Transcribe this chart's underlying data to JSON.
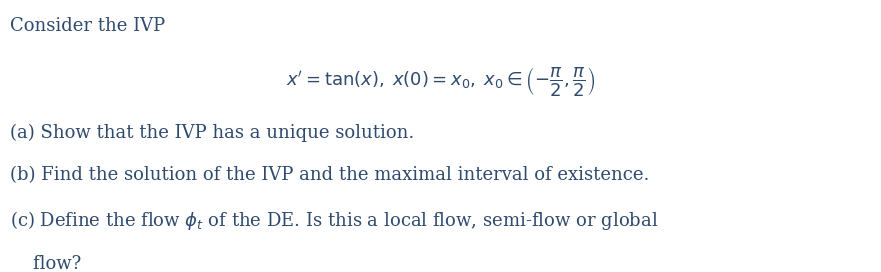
{
  "background_color": "#ffffff",
  "text_color": "#2e4a6e",
  "title_text": "Consider the IVP",
  "equation": "$x' = \\tan(x), \\; x(0) = x_0, \\; x_0 \\in \\left(-\\dfrac{\\pi}{2}, \\dfrac{\\pi}{2}\\right)$",
  "part_a": "(a) Show that the IVP has a unique solution.",
  "part_b": "(b) Find the solution of the IVP and the maximal interval of existence.",
  "part_c1": "(c) Define the flow $\\phi_t$ of the DE. Is this a local flow, semi-flow or global",
  "part_c2": "    flow?",
  "title_fontsize": 13,
  "eq_fontsize": 13,
  "body_fontsize": 13
}
